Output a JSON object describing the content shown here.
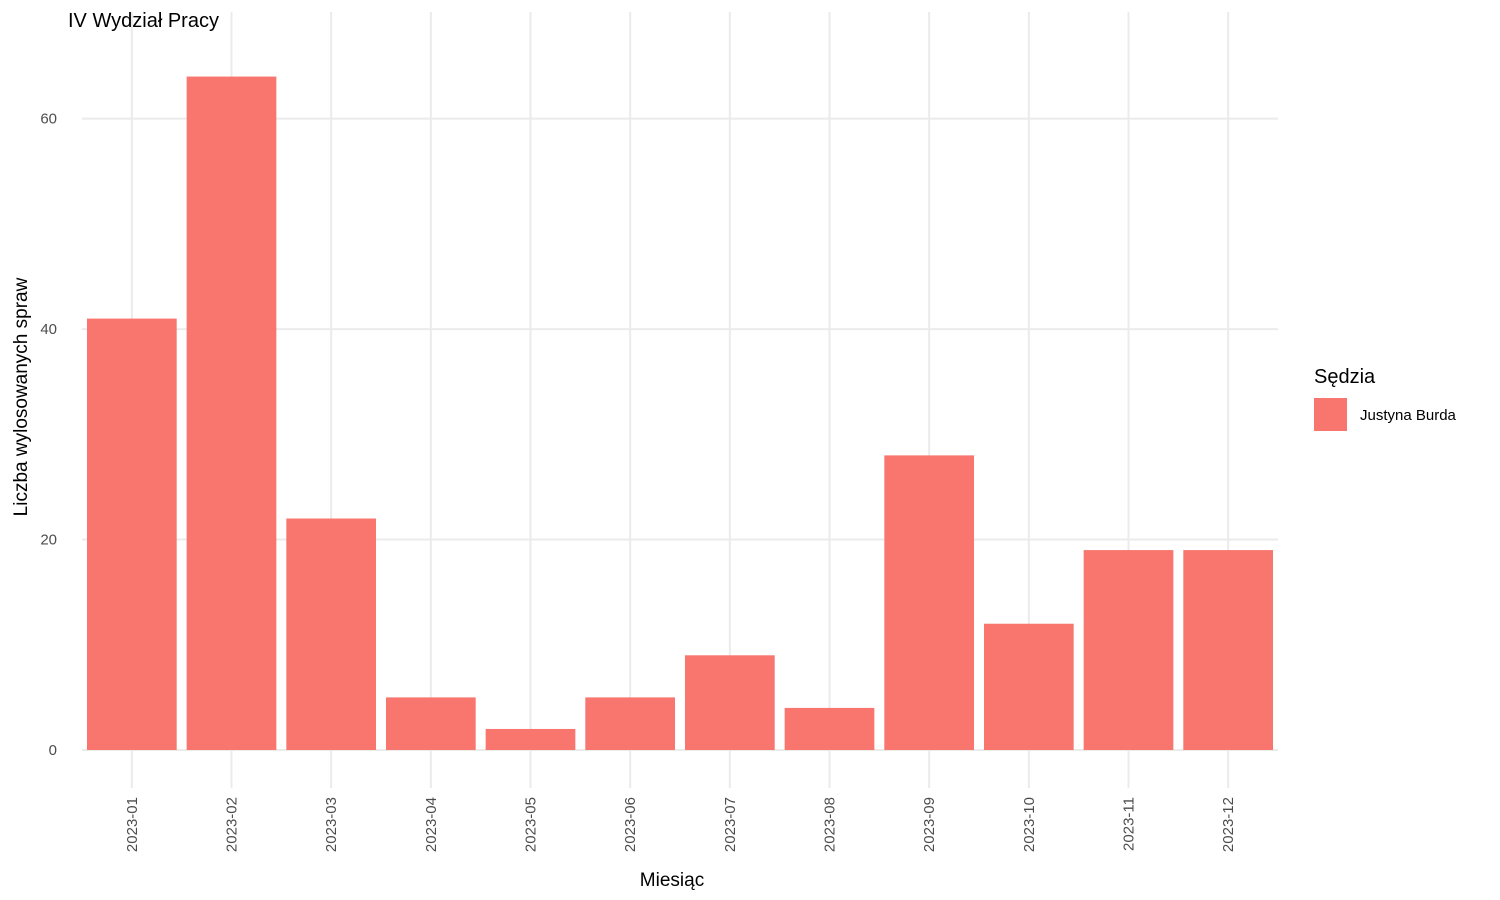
{
  "chart_data": {
    "type": "bar",
    "title": "IV Wydział Pracy",
    "xlabel": "Miesiąc",
    "ylabel": "Liczba wylosowanych spraw",
    "categories": [
      "2023-01",
      "2023-02",
      "2023-03",
      "2023-04",
      "2023-05",
      "2023-06",
      "2023-07",
      "2023-08",
      "2023-09",
      "2023-10",
      "2023-11",
      "2023-12"
    ],
    "series": [
      {
        "name": "Justyna Burda",
        "color": "#f8766d",
        "values": [
          41,
          64,
          22,
          5,
          2,
          5,
          9,
          4,
          28,
          12,
          19,
          19
        ]
      }
    ],
    "yticks": [
      "0",
      "20",
      "40",
      "60"
    ],
    "ylim": [
      0,
      67
    ],
    "grid": true,
    "legend": {
      "title": "Sędzia",
      "position": "right"
    }
  }
}
